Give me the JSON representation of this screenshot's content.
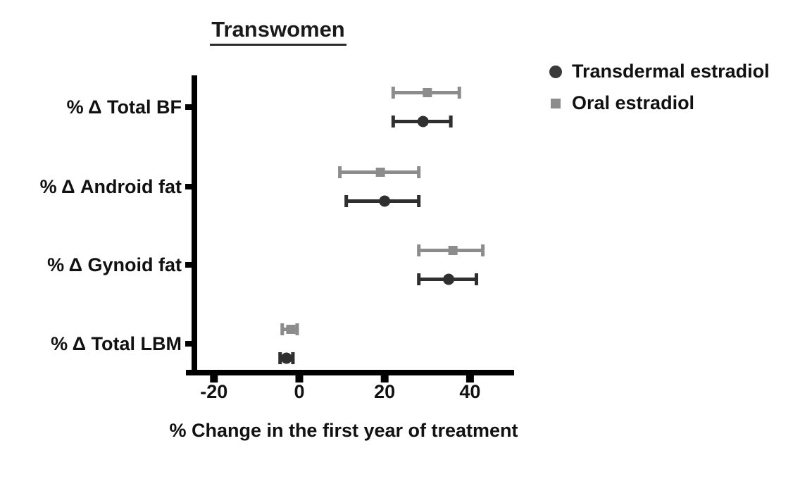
{
  "title": "Transwomen",
  "chart_data": {
    "type": "scatter",
    "subtype": "horizontal-dot-plot-with-error-bars",
    "title": "Transwomen",
    "xlabel": "% Change in the first year of treatment",
    "ylabel": "",
    "xlim": [
      -25,
      50
    ],
    "xticks": [
      -20,
      0,
      20,
      40
    ],
    "grid": false,
    "legend_position": "top-right",
    "categories": [
      "% Δ Total BF",
      "% Δ Android fat",
      "% Δ Gynoid fat",
      "% Δ Total LBM"
    ],
    "series": [
      {
        "name": "Transdermal estradiol",
        "marker": "circle",
        "color": "#2f2f2f",
        "values": [
          29,
          20,
          35,
          -3
        ],
        "ci_low": [
          22,
          11,
          28,
          -4.5
        ],
        "ci_high": [
          35.5,
          28,
          41.5,
          -1.5
        ]
      },
      {
        "name": "Oral estradiol",
        "marker": "square",
        "color": "#8c8c8c",
        "values": [
          30,
          19,
          36,
          -2
        ],
        "ci_low": [
          22,
          9.5,
          28,
          -4
        ],
        "ci_high": [
          37.5,
          28,
          43,
          -0.5
        ]
      }
    ],
    "axis_color": "#000000"
  }
}
